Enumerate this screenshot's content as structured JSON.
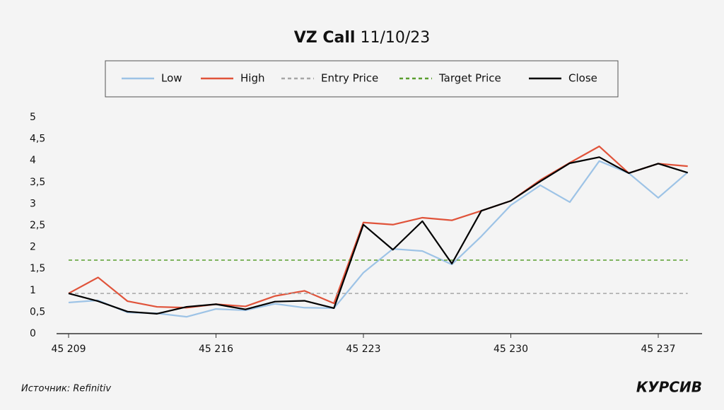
{
  "chart_data": {
    "type": "line",
    "title": {
      "main": "VZ Call",
      "date": "11/10/23"
    },
    "source": "Источник: Refinitiv",
    "brand": "КУРСИВ",
    "categories": [
      "45 209",
      null,
      null,
      null,
      null,
      "45 216",
      null,
      null,
      null,
      null,
      "45 223",
      null,
      null,
      null,
      null,
      "45 230",
      null,
      null,
      null,
      null,
      "45 237",
      null
    ],
    "series": [
      {
        "name": "Low",
        "color": "#9dc3e6",
        "style": "solid",
        "values": [
          0.72,
          0.77,
          0.49,
          0.47,
          0.39,
          0.57,
          0.54,
          0.69,
          0.6,
          0.59,
          1.41,
          1.96,
          1.91,
          1.6,
          2.25,
          2.97,
          3.43,
          3.04,
          3.99,
          3.71,
          3.14,
          3.73
        ]
      },
      {
        "name": "High",
        "color": "#e0533a",
        "style": "solid",
        "values": [
          0.93,
          1.3,
          0.75,
          0.62,
          0.6,
          0.68,
          0.63,
          0.87,
          0.99,
          0.7,
          2.57,
          2.52,
          2.68,
          2.62,
          2.84,
          3.07,
          3.55,
          3.95,
          4.33,
          3.71,
          3.93,
          3.87
        ]
      },
      {
        "name": "Entry Price",
        "color": "#a6a6a6",
        "style": "dashed",
        "values": [
          0.93,
          0.93,
          0.93,
          0.93,
          0.93,
          0.93,
          0.93,
          0.93,
          0.93,
          0.93,
          0.93,
          0.93,
          0.93,
          0.93,
          0.93,
          0.93,
          0.93,
          0.93,
          0.93,
          0.93,
          0.93,
          0.93
        ]
      },
      {
        "name": "Target Price",
        "color": "#5a9e2f",
        "style": "dashed",
        "values": [
          1.7,
          1.7,
          1.7,
          1.7,
          1.7,
          1.7,
          1.7,
          1.7,
          1.7,
          1.7,
          1.7,
          1.7,
          1.7,
          1.7,
          1.7,
          1.7,
          1.7,
          1.7,
          1.7,
          1.7,
          1.7,
          1.7
        ]
      },
      {
        "name": "Close",
        "color": "#000000",
        "style": "solid",
        "values": [
          0.93,
          0.75,
          0.51,
          0.46,
          0.62,
          0.68,
          0.56,
          0.74,
          0.76,
          0.59,
          2.52,
          1.94,
          2.6,
          1.62,
          2.84,
          3.07,
          3.52,
          3.94,
          4.08,
          3.71,
          3.93,
          3.72
        ]
      }
    ],
    "ylim": [
      0,
      5
    ],
    "yticks": [
      0,
      {
        "value": 0.5,
        "label": "0,5"
      },
      1,
      {
        "value": 1.5,
        "label": "1,5"
      },
      2,
      {
        "value": 2.5,
        "label": "2,5"
      },
      3,
      {
        "value": 3.5,
        "label": "3,5"
      },
      4,
      {
        "value": 4.5,
        "label": "4,5"
      },
      5
    ],
    "legend": "top"
  }
}
